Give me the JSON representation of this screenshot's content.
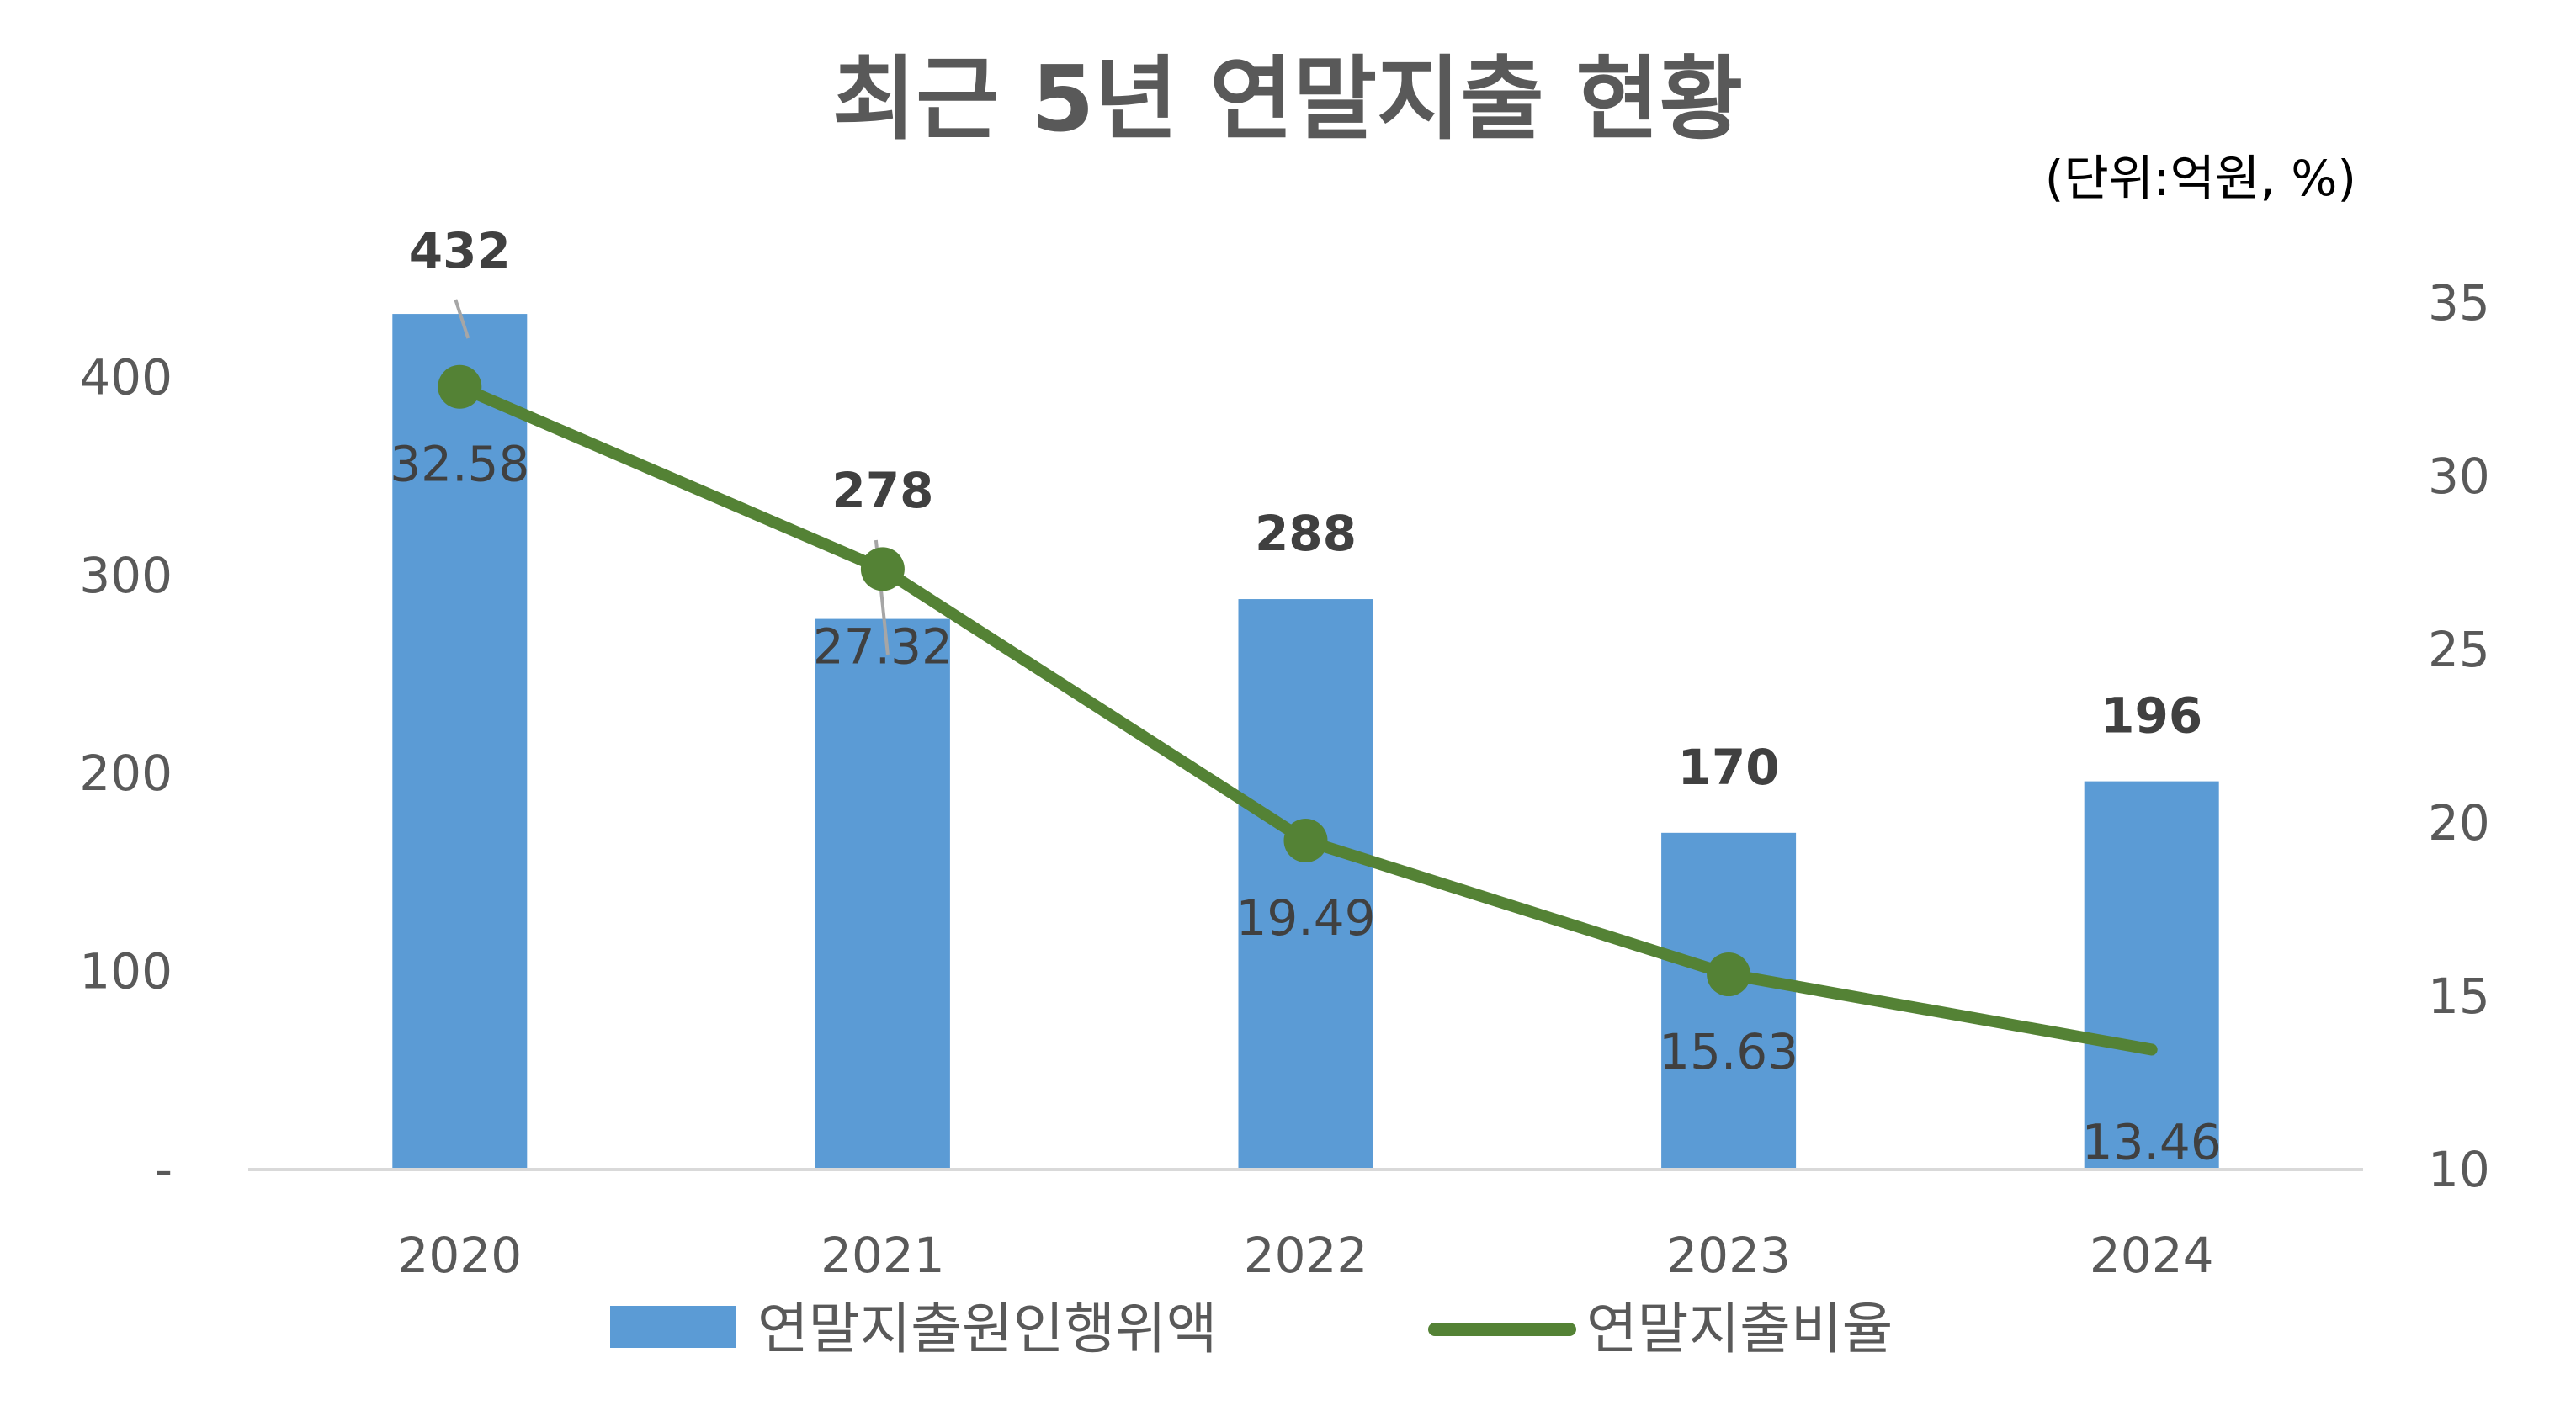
{
  "chart_data": {
    "type": "bar",
    "title": "최근 5년 연말지출 현황",
    "unit_note": "(단위:억원, %)",
    "categories": [
      "2020",
      "2021",
      "2022",
      "2023",
      "2024"
    ],
    "series": [
      {
        "name": "연말지출원인행위액",
        "type": "bar",
        "axis": "left",
        "values": [
          432,
          278,
          288,
          170,
          196
        ],
        "value_labels": [
          "432",
          "278",
          "288",
          "170",
          "196"
        ],
        "color": "#5B9BD5"
      },
      {
        "name": "연말지출비율",
        "type": "line",
        "axis": "right",
        "values": [
          32.58,
          27.32,
          19.49,
          15.63,
          13.46
        ],
        "value_labels": [
          "32.58",
          "27.32",
          "19.49",
          "15.63",
          "13.46"
        ],
        "color": "#548235"
      }
    ],
    "y_left": {
      "min": 0,
      "max": 500,
      "ticks": [
        0,
        100,
        200,
        300,
        400
      ],
      "tick_labels": [
        "-",
        "100",
        "200",
        "300",
        "400"
      ]
    },
    "y_right": {
      "min": 10,
      "max": 36,
      "ticks": [
        10,
        15,
        20,
        25,
        30,
        35
      ],
      "tick_labels": [
        "10",
        "15",
        "20",
        "25",
        "30",
        "35"
      ]
    },
    "grid": false,
    "legend_position": "bottom",
    "axis_color": "#D9D9D9"
  }
}
